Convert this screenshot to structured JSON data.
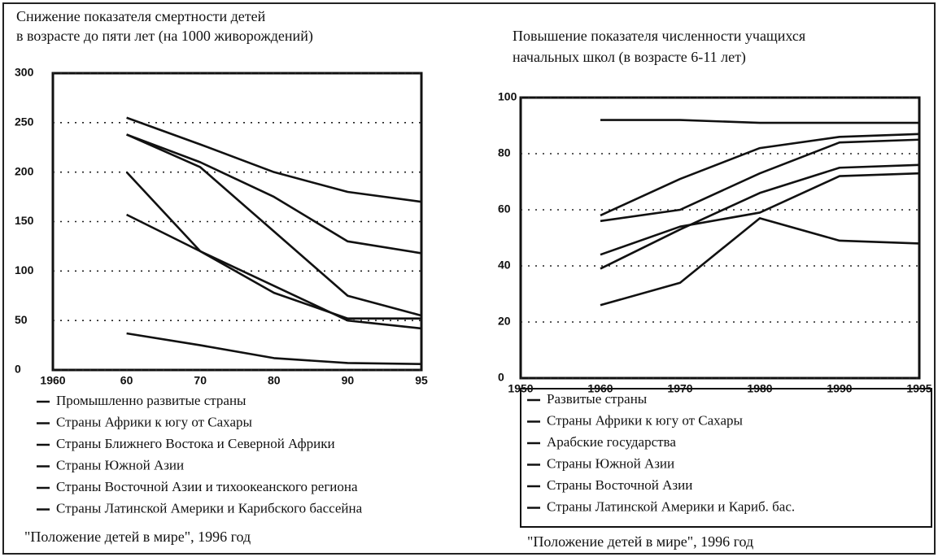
{
  "chart_data": [
    {
      "type": "line",
      "title": [
        "Снижение показателя смертности детей",
        "в возрасте до пяти лет (на 1000 живорождений)"
      ],
      "categories": [
        "1960",
        "60",
        "70",
        "80",
        "90",
        "95"
      ],
      "ylim": [
        0,
        300
      ],
      "yticks": [
        0,
        50,
        100,
        150,
        200,
        250,
        300
      ],
      "grid": true,
      "series": [
        {
          "name": "Промышленно развитые страны",
          "color": "#111111",
          "values": [
            null,
            37,
            25,
            12,
            7,
            6
          ]
        },
        {
          "name": "Страны Африки к югу от Сахары",
          "color": "#111111",
          "values": [
            null,
            255,
            228,
            200,
            180,
            170
          ]
        },
        {
          "name": "Страны Ближнего Востока и Северной Африки",
          "color": "#111111",
          "values": [
            null,
            238,
            205,
            140,
            75,
            55
          ]
        },
        {
          "name": "Страны Южной Азии",
          "color": "#111111",
          "values": [
            null,
            238,
            210,
            175,
            130,
            118
          ]
        },
        {
          "name": "Страны Восточной Азии и тихоокеанского региона",
          "color": "#111111",
          "values": [
            null,
            200,
            120,
            78,
            52,
            52
          ]
        },
        {
          "name": "Страны Латинской Америки и Карибского бассейна",
          "color": "#111111",
          "values": [
            null,
            157,
            120,
            85,
            50,
            42
          ]
        }
      ],
      "source": "\"Положение детей в мире\", 1996 год"
    },
    {
      "type": "line",
      "title": [
        "Повышение показателя численности учащихся",
        "начальных школ (в возрасте 6-11 лет)"
      ],
      "categories": [
        "1950",
        "1960",
        "1970",
        "1980",
        "1990",
        "1995"
      ],
      "ylim": [
        0,
        100
      ],
      "yticks": [
        0,
        20,
        40,
        60,
        80,
        100
      ],
      "grid": true,
      "series": [
        {
          "name": "Развитые страны",
          "color": "#111111",
          "values": [
            null,
            92,
            92,
            91,
            91,
            91
          ]
        },
        {
          "name": "Страны Африки к югу от Сахары",
          "color": "#111111",
          "values": [
            null,
            26,
            34,
            57,
            49,
            48
          ]
        },
        {
          "name": "Арабские государства",
          "color": "#111111",
          "values": [
            null,
            39,
            53,
            66,
            75,
            76
          ]
        },
        {
          "name": "Страны Южной Азии",
          "color": "#111111",
          "values": [
            null,
            44,
            54,
            59,
            72,
            73
          ]
        },
        {
          "name": "Страны Восточной Азии",
          "color": "#111111",
          "values": [
            null,
            58,
            71,
            82,
            86,
            87
          ]
        },
        {
          "name": "Страны Латинской Америки и Кариб. бас.",
          "color": "#111111",
          "values": [
            null,
            56,
            60,
            73,
            84,
            85
          ]
        }
      ],
      "source": "\"Положение детей в мире\", 1996 год"
    }
  ]
}
